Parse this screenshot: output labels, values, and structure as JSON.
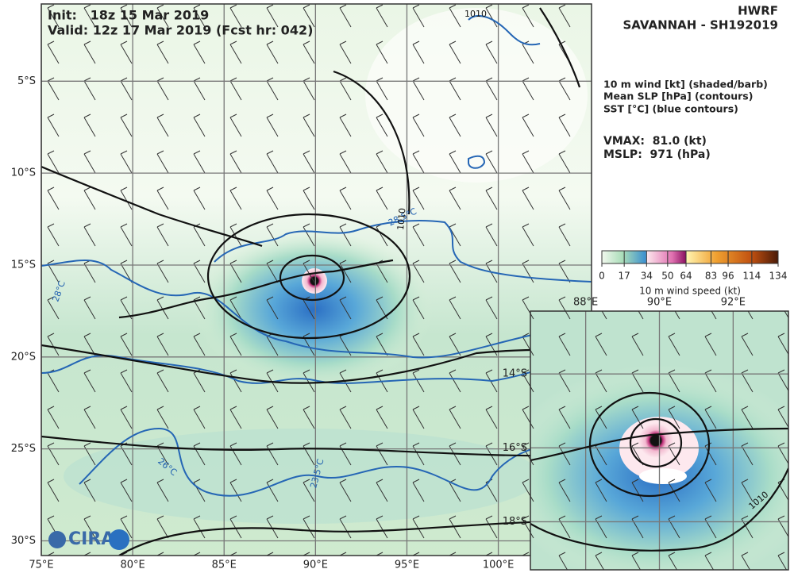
{
  "header": {
    "init": "Init:   18z 15 Mar 2019",
    "valid": "Valid: 12z 17 Mar 2019 (Fcst hr: 042)"
  },
  "title": {
    "model": "HWRF",
    "storm": "SAVANNAH - SH192019"
  },
  "fields": [
    "10 m wind [kt] (shaded/barb)",
    "Mean SLP [hPa] (contours)",
    "SST [°C] (blue contours)"
  ],
  "stats": [
    "VMAX:  81.0 (kt)",
    "MSLP:  971 (hPa)"
  ],
  "colorbar": {
    "ticks": [
      0,
      17,
      34,
      50,
      64,
      83,
      96,
      114,
      134
    ],
    "label": "10 m wind speed (kt)"
  },
  "main_map": {
    "xlim": [
      75,
      105.1
    ],
    "ylim": [
      -0.8,
      -30.8
    ],
    "xticks": [
      {
        "value": 75,
        "label": "75°E"
      },
      {
        "value": 80,
        "label": "80°E"
      },
      {
        "value": 85,
        "label": "85°E"
      },
      {
        "value": 90,
        "label": "90°E"
      },
      {
        "value": 95,
        "label": "95°E"
      },
      {
        "value": 100,
        "label": "100°E"
      }
    ],
    "yticks": [
      {
        "value": -5,
        "label": "5°S"
      },
      {
        "value": -10,
        "label": "10°S"
      },
      {
        "value": -15,
        "label": "15°S"
      },
      {
        "value": -20,
        "label": "20°S"
      },
      {
        "value": -25,
        "label": "25°S"
      },
      {
        "value": -30,
        "label": "30°S"
      }
    ]
  },
  "inset_map": {
    "xlim": [
      86.5,
      93.5
    ],
    "ylim": [
      -12.3,
      -19.3
    ],
    "xticks": [
      {
        "value": 88,
        "label": "88°E"
      },
      {
        "value": 90,
        "label": "90°E"
      },
      {
        "value": 92,
        "label": "92°E"
      }
    ],
    "yticks": [
      {
        "value": -14,
        "label": "14°S"
      },
      {
        "value": -16,
        "label": "16°S"
      },
      {
        "value": -18,
        "label": "18°S"
      }
    ]
  },
  "contour_labels": [
    "1010",
    "28.5°C",
    "28°C",
    "26°C",
    "23.5°C",
    "1010",
    "1010"
  ],
  "logo": "CIRA"
}
